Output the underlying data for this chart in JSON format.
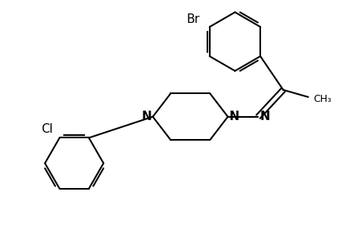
{
  "background": "#ffffff",
  "line_color": "#000000",
  "line_width": 1.5,
  "font_size": 10,
  "fig_width": 4.6,
  "fig_height": 3.0,
  "dpi": 100,
  "xlim": [
    0,
    10
  ],
  "ylim": [
    0,
    6.5
  ]
}
